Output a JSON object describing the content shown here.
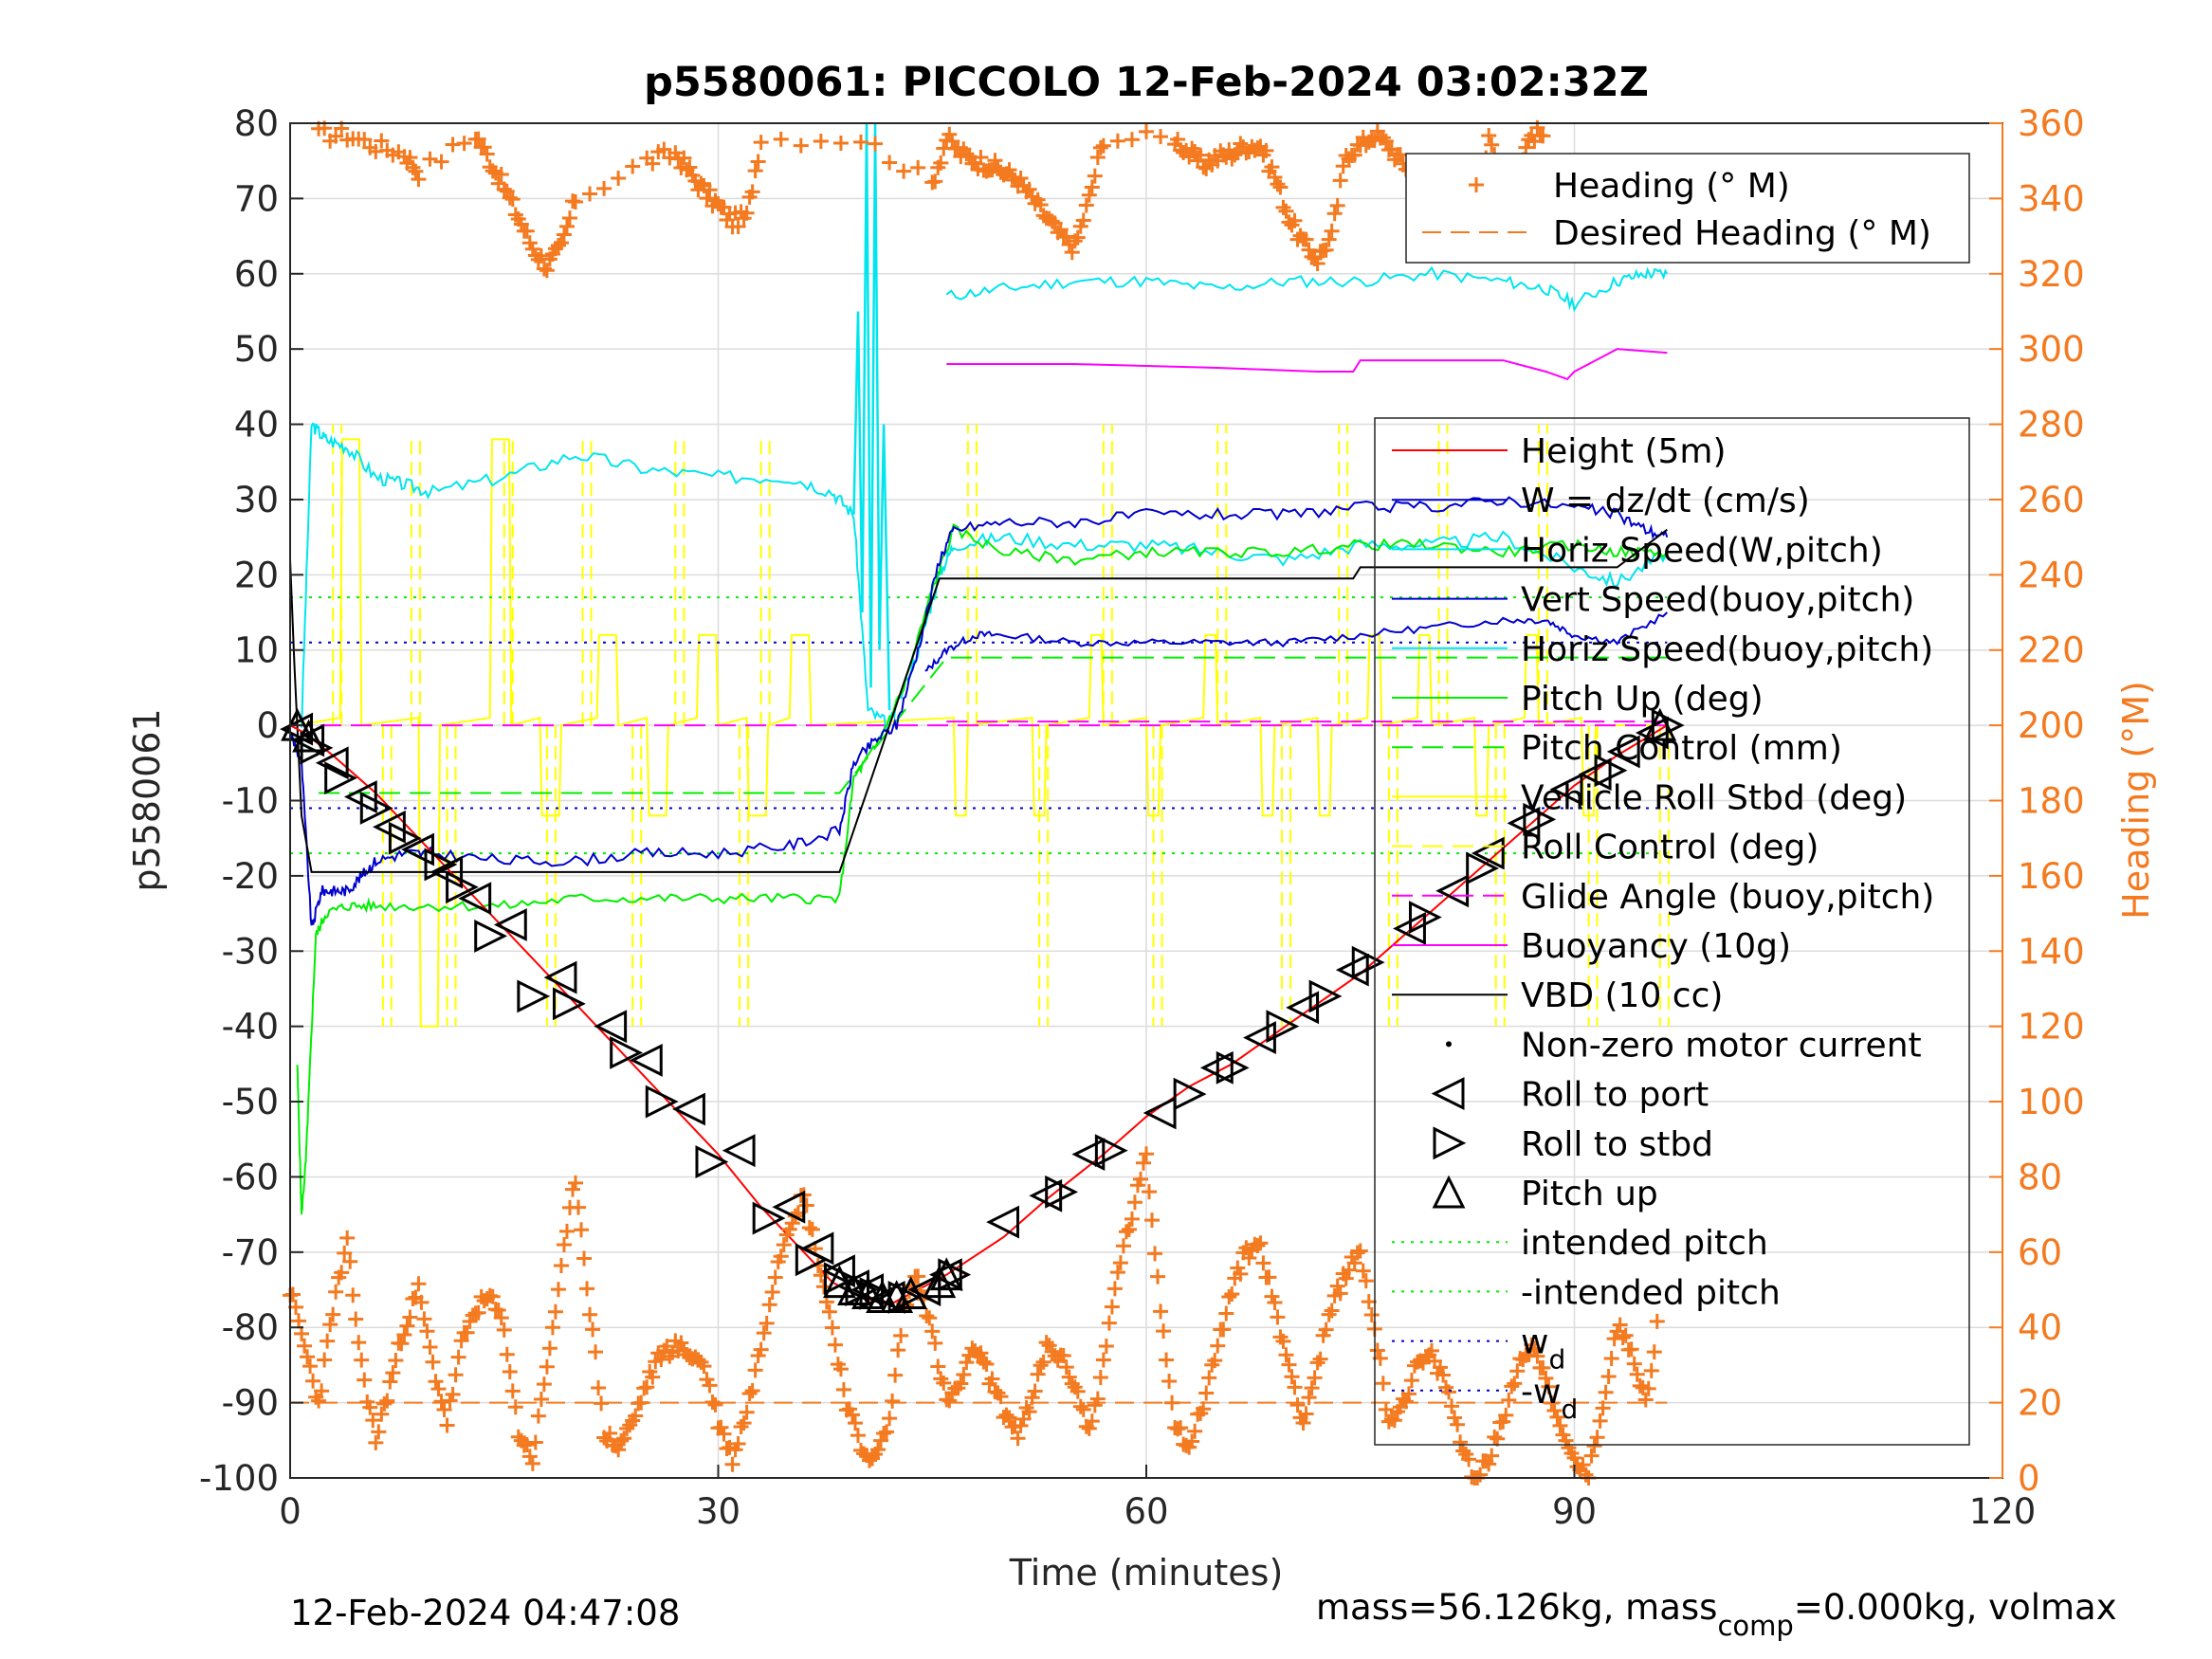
{
  "header": {
    "title": "p5580061: PICCOLO 12-Feb-2024 03:02:32Z"
  },
  "footer": {
    "timestamp": "12-Feb-2024 04:47:08",
    "mass_prefix": "mass=56.126kg, mass",
    "mass_sub": "comp",
    "mass_suffix": "=0.000kg, volmax"
  },
  "colors": {
    "red": "#ff0000",
    "blue": "#0000cc",
    "green": "#00ee00",
    "cyan": "#00e5ee",
    "yellow": "#ffff00",
    "magenta": "#ff00ff",
    "black": "#000000",
    "orange": "#f47a20"
  },
  "chart_data": {
    "type": "line",
    "xlabel": "Time (minutes)",
    "ylabel": "p5580061",
    "y2label": "Heading (°M)",
    "xlim": [
      0,
      120
    ],
    "ylim": [
      -100,
      80
    ],
    "y2lim": [
      0,
      360
    ],
    "xticks": [
      0,
      30,
      60,
      90,
      120
    ],
    "yticks": [
      80,
      70,
      60,
      50,
      40,
      30,
      20,
      10,
      0,
      -10,
      -20,
      -30,
      -40,
      -50,
      -60,
      -70,
      -80,
      -90,
      -100
    ],
    "y2ticks": [
      360,
      340,
      320,
      300,
      280,
      260,
      240,
      220,
      200,
      180,
      160,
      140,
      120,
      100,
      80,
      60,
      40,
      20,
      0
    ],
    "grid": true,
    "legend_heading": {
      "placement": "top-right",
      "entries": [
        "Heading (° M)",
        "Desired Heading (° M)"
      ]
    },
    "legend_main": {
      "placement": "right",
      "entries": [
        "Height (5m)",
        "W = dz/dt (cm/s)",
        "Horiz Speed(W,pitch)",
        "Vert Speed(buoy,pitch)",
        "Horiz Speed(buoy,pitch)",
        "Pitch Up (deg)",
        "Pitch Control (mm)",
        "Vehicle Roll Stbd (deg)",
        "Roll Control (deg)",
        "Glide Angle (buoy,pitch)",
        "Buoyancy (10g)",
        "VBD (10 cc)",
        "Non-zero motor current",
        "Roll to port",
        "Roll to stbd",
        "Pitch up",
        "intended pitch",
        "-intended pitch",
        "w",
        "-w"
      ],
      "subscript": "d"
    },
    "series": {
      "height": {
        "x": [
          0,
          1,
          3,
          6,
          9,
          12,
          15,
          18,
          21,
          24,
          27,
          30,
          33,
          36,
          38,
          40,
          42,
          44,
          46,
          50,
          53,
          57,
          60,
          63,
          66,
          69,
          72,
          75,
          78,
          81,
          84,
          87,
          90,
          93,
          96.5
        ],
        "y": [
          0,
          -1,
          -4,
          -9,
          -15,
          -21,
          -27,
          -33,
          -39,
          -45,
          -51,
          -57,
          -64,
          -70,
          -74,
          -76,
          -77,
          -75,
          -73,
          -68,
          -63,
          -57,
          -52,
          -48,
          -45,
          -41,
          -37,
          -33,
          -28,
          -23,
          -18,
          -13,
          -8,
          -4,
          0
        ]
      },
      "w": {
        "x": [
          0,
          0.8,
          1.5,
          2.2,
          3,
          4,
          5,
          6,
          8,
          10,
          15,
          20,
          25,
          30,
          35,
          38.5,
          39.5,
          41,
          42.5,
          44,
          45.5,
          46.5,
          50,
          55,
          60,
          65,
          70,
          75,
          80,
          85,
          90,
          93,
          95,
          96.5
        ],
        "y": [
          -1,
          -5,
          -27,
          -22,
          -22,
          -22,
          -20,
          -18,
          -17,
          -17,
          -18,
          -18,
          -17,
          -17,
          -16,
          -14,
          -5,
          -2,
          0,
          10,
          22,
          26,
          27,
          27,
          28,
          28,
          28,
          29,
          29,
          30,
          29,
          28,
          26,
          25
        ]
      },
      "horiz_speed_w": {
        "x": [
          0.8,
          1.5,
          2.5,
          4,
          6,
          8,
          10,
          15,
          20,
          25,
          30,
          35,
          38,
          39.5,
          40.5,
          42,
          44,
          45.5,
          46.5,
          50,
          55,
          60,
          65,
          70,
          75,
          80,
          85,
          90,
          93,
          96.5
        ],
        "y": [
          0,
          40,
          38,
          37,
          33,
          32,
          31,
          33,
          36,
          34,
          33,
          33,
          31,
          28,
          2,
          0,
          10,
          20,
          24,
          25,
          24,
          24,
          23,
          22,
          24,
          24,
          25,
          21,
          19,
          23
        ]
      },
      "cyan_spike": {
        "x": [
          39.5,
          39.8,
          40.1,
          40.4,
          40.7,
          41,
          41.3,
          41.6,
          42
        ],
        "y": [
          28,
          55,
          15,
          80,
          5,
          80,
          10,
          40,
          2
        ]
      },
      "vert_speed_buoy": {
        "x": [
          44.5,
          46,
          48,
          50,
          55,
          60,
          65,
          70,
          75,
          80,
          85,
          88,
          90,
          93,
          96.5
        ],
        "y": [
          7,
          10,
          12,
          12,
          11,
          11,
          11,
          11,
          12,
          13,
          14,
          14,
          12,
          11,
          15
        ]
      },
      "pitch_up": {
        "x": [
          0.5,
          0.8,
          1.1,
          1.4,
          1.8,
          2.5,
          4,
          6,
          10,
          15,
          20,
          25,
          30,
          35,
          38.5,
          39.5,
          41,
          43,
          45,
          46.5,
          50,
          55,
          60,
          65,
          70,
          75,
          80,
          85,
          90,
          93,
          96.5
        ],
        "y": [
          -45,
          -65,
          -58,
          -45,
          -28,
          -25,
          -24,
          -24,
          -24,
          -24,
          -23,
          -23,
          -23,
          -23,
          -23,
          -7,
          -3,
          5,
          18,
          26,
          23,
          22,
          23,
          23,
          23,
          24,
          24,
          23,
          24,
          23,
          23
        ]
      },
      "pitch_control": {
        "x": [
          2,
          38.5,
          46,
          96.5
        ],
        "y": [
          -9,
          -9,
          9,
          9
        ]
      },
      "roll_control": {
        "x": [
          0,
          96.5
        ],
        "y": [
          0,
          0
        ]
      },
      "glide_angle": {
        "x": [
          46,
          96.5
        ],
        "y": [
          0.5,
          0.5
        ]
      },
      "buoyancy": {
        "x": [
          46,
          55,
          65,
          72,
          74.5,
          75,
          85,
          88,
          89.5,
          90,
          92,
          93,
          96.5
        ],
        "y": [
          48,
          48,
          47.5,
          47,
          47,
          48.5,
          48.5,
          47,
          46,
          47,
          49,
          50,
          49.5
        ]
      },
      "cyan_top": {
        "x": [
          46,
          50,
          55,
          60,
          65,
          70,
          75,
          80,
          85,
          88,
          90,
          93,
          95,
          96.5
        ],
        "y": [
          57,
          58,
          59,
          59,
          58,
          59,
          59,
          60,
          59,
          58,
          56,
          59,
          60,
          60
        ]
      },
      "vbd": {
        "x": [
          0,
          0.3,
          0.8,
          1.5,
          38.5,
          45.5,
          74.5,
          75,
          93,
          96.5
        ],
        "y": [
          22,
          8,
          -12,
          -19.5,
          -19.5,
          19.5,
          19.5,
          21,
          21,
          26
        ]
      },
      "intended_pitch": {
        "value": 17
      },
      "neg_intended_pitch": {
        "value": -17
      },
      "w_d": {
        "value": 11
      },
      "neg_w_d": {
        "value": -11
      },
      "desired_heading": {
        "value": 20
      },
      "heading_top": {
        "x": [
          2,
          4,
          6,
          8,
          9,
          13,
          14,
          15,
          16,
          17,
          18,
          19,
          20,
          25,
          27,
          28,
          29,
          30,
          31,
          32,
          33,
          40,
          45,
          46,
          47,
          48,
          49,
          50,
          51,
          52,
          53,
          54,
          55,
          56,
          57,
          62,
          63,
          64,
          65,
          66,
          67,
          68,
          69,
          70,
          71,
          72,
          73,
          74,
          75,
          76,
          77,
          78,
          79,
          80,
          81,
          82,
          83,
          84,
          85,
          86,
          87,
          88
        ],
        "y": [
          357,
          357,
          354,
          352,
          347,
          357,
          350,
          343,
          335,
          327,
          322,
          327,
          340,
          350,
          352,
          347,
          342,
          338,
          334,
          335,
          356,
          356,
          344,
          356,
          352,
          350,
          349,
          347,
          345,
          340,
          335,
          330,
          327,
          340,
          356,
          356,
          352,
          349,
          351,
          352,
          354,
          354,
          346,
          335,
          328,
          324,
          330,
          352,
          354,
          357,
          354,
          349,
          347,
          350,
          345,
          343,
          338,
          355,
          346,
          348,
          357,
          357
        ]
      },
      "heading_bottom": {
        "x": [
          0,
          1,
          2,
          3,
          4,
          5,
          6,
          7,
          8,
          9,
          10,
          11,
          12,
          13,
          14,
          15,
          16,
          17,
          18,
          19,
          20,
          21,
          22,
          23,
          24,
          25,
          26,
          27,
          28,
          29,
          30,
          31,
          32,
          33,
          34,
          35,
          36,
          37,
          38,
          39,
          40,
          41,
          42,
          43,
          44,
          45,
          46,
          47,
          48,
          49,
          50,
          51,
          52,
          53,
          54,
          55,
          56,
          57,
          58,
          59,
          60,
          61,
          62,
          63,
          64,
          65,
          66,
          67,
          68,
          69,
          70,
          71,
          72,
          73,
          74,
          75,
          76,
          77,
          78,
          79,
          80,
          81,
          82,
          83,
          84,
          85,
          86,
          87,
          88,
          89,
          90,
          91,
          92,
          93,
          94,
          95,
          96
        ],
        "y": [
          50,
          35,
          20,
          45,
          62,
          30,
          10,
          25,
          40,
          50,
          30,
          15,
          35,
          45,
          48,
          40,
          12,
          5,
          30,
          55,
          80,
          45,
          12,
          8,
          15,
          25,
          33,
          35,
          33,
          30,
          15,
          5,
          18,
          35,
          55,
          68,
          75,
          58,
          40,
          20,
          8,
          5,
          15,
          45,
          55,
          38,
          20,
          25,
          35,
          27,
          18,
          12,
          20,
          35,
          32,
          25,
          12,
          30,
          55,
          70,
          85,
          45,
          15,
          8,
          20,
          35,
          50,
          60,
          62,
          45,
          30,
          15,
          30,
          45,
          55,
          60,
          40,
          15,
          20,
          30,
          32,
          25,
          10,
          0,
          5,
          15,
          30,
          35,
          28,
          12,
          5,
          0,
          20,
          40,
          35,
          20,
          45
        ]
      },
      "roll_to_port": {
        "x": [
          0.5,
          1.3,
          3,
          5,
          7,
          9,
          11,
          13,
          15.5,
          19,
          22.5,
          25,
          28,
          31.5,
          35,
          37,
          38.5,
          39.5,
          40.5,
          42,
          44.5,
          46,
          50,
          53,
          56,
          61,
          65,
          68,
          71,
          74.5,
          78.5,
          81.5,
          84,
          86.5,
          89.5,
          91.5,
          93.5,
          95.5
        ],
        "y": [
          -0.5,
          -2,
          -5,
          -9.5,
          -13.5,
          -16.5,
          -19.5,
          -23,
          -26.5,
          -33.5,
          -40,
          -44.5,
          -51,
          -56.5,
          -64,
          -69.5,
          -72.5,
          -74.5,
          -75,
          -76,
          -75,
          -73,
          -66,
          -62.5,
          -57,
          -51.5,
          -45.5,
          -41.5,
          -37.5,
          -32.5,
          -27,
          -22,
          -17,
          -13,
          -8.5,
          -6.5,
          -3.5,
          -1
        ]
      },
      "roll_to_stbd": {
        "x": [
          1.8,
          3.5,
          6,
          8,
          10.5,
          12,
          14,
          17,
          19.5,
          23.5,
          26,
          29.5,
          33.5,
          36.5,
          38.5,
          40,
          41,
          43,
          46.5,
          54,
          57.5,
          63,
          66,
          69.5,
          72.5,
          75.5,
          79.5,
          83.5,
          87.5,
          92.5,
          96.5
        ],
        "y": [
          -3,
          -7,
          -11,
          -15,
          -18.5,
          -21.5,
          -28,
          -36,
          -37,
          -43.5,
          -50,
          -58,
          -65.5,
          -71,
          -73.5,
          -75,
          -75.5,
          -76,
          -73,
          -62,
          -56.5,
          -49,
          -45.5,
          -40,
          -36,
          -31.5,
          -25.5,
          -19,
          -12.5,
          -6,
          0
        ]
      },
      "pitch_up_markers": {
        "x": [
          0.5,
          1.3,
          38.5,
          39.5,
          40.5,
          41.5,
          42.5,
          43.5,
          45.5,
          46,
          96
        ],
        "y": [
          0,
          -1.5,
          -74,
          -75,
          -75.5,
          -76,
          -76,
          -75.5,
          -74,
          -73,
          0
        ]
      }
    }
  }
}
